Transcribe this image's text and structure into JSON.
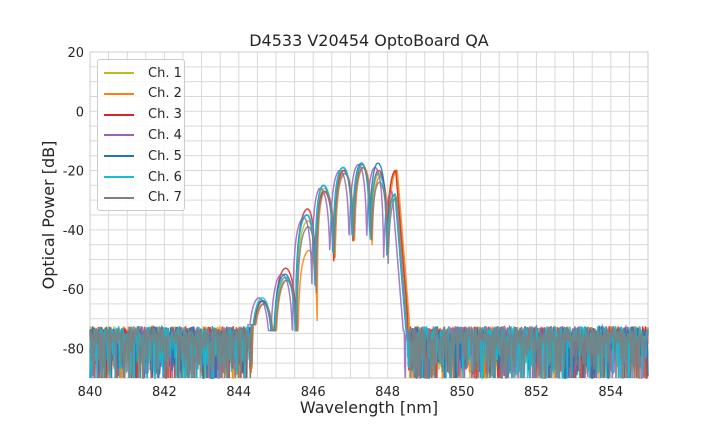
{
  "chart_data": {
    "type": "line",
    "title": "D4533 V20454 OptoBoard QA",
    "xlabel": "Wavelength [nm]",
    "ylabel": "Optical Power [dB]",
    "xlim": [
      840,
      855
    ],
    "ylim": [
      -90,
      20
    ],
    "xticks": [
      840,
      842,
      844,
      846,
      848,
      850,
      852,
      854
    ],
    "yticks": [
      -80,
      -60,
      -40,
      -20,
      0,
      20
    ],
    "grid": true,
    "minor_grid": true,
    "legend_position": "top-left",
    "noise_floor_db": -76,
    "lobe_centers_nm": [
      844.62,
      845.24,
      845.83,
      846.27,
      846.8,
      847.3,
      847.74,
      848.2
    ],
    "series": [
      {
        "name": "Ch. 1",
        "color": "#bcbd22",
        "shift_nm": 0.03,
        "lobe_peaks_db": [
          -64,
          -56,
          -37,
          -26,
          -20,
          -19,
          -21,
          -20
        ]
      },
      {
        "name": "Ch. 2",
        "color": "#ff7f0e",
        "shift_nm": 0.06,
        "lobe_peaks_db": [
          -65,
          -57,
          -47,
          -27,
          -21,
          -19,
          -22,
          -20
        ]
      },
      {
        "name": "Ch. 3",
        "color": "#d62728",
        "shift_nm": 0.02,
        "lobe_peaks_db": [
          -64,
          -53,
          -33,
          -27,
          -20,
          -18,
          -20,
          -20
        ]
      },
      {
        "name": "Ch. 4",
        "color": "#9467bd",
        "shift_nm": -0.08,
        "lobe_peaks_db": [
          -63,
          -55,
          -36,
          -26,
          -20,
          -18,
          -19,
          -27
        ]
      },
      {
        "name": "Ch. 5",
        "color": "#1f77b4",
        "shift_nm": 0.0,
        "lobe_peaks_db": [
          -64,
          -55,
          -35,
          -25,
          -19,
          -17.5,
          -17.5,
          -28
        ]
      },
      {
        "name": "Ch. 6",
        "color": "#17becf",
        "shift_nm": 0.01,
        "lobe_peaks_db": [
          -63,
          -56,
          -35,
          -25,
          -19,
          -18,
          -21,
          -28
        ]
      },
      {
        "name": "Ch. 7",
        "color": "#7f7f7f",
        "shift_nm": 0.04,
        "lobe_peaks_db": [
          -65,
          -57,
          -39,
          -27,
          -21,
          -19,
          -24,
          -29
        ]
      }
    ]
  }
}
